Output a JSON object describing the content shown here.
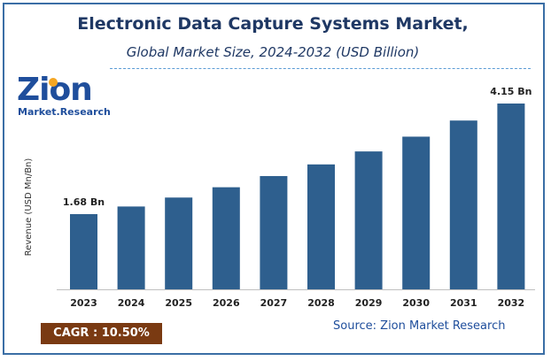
{
  "header": {
    "title": "Electronic Data Capture Systems Market,",
    "subtitle": "Global Market Size, 2024-2032 (USD Billion)"
  },
  "logo": {
    "main": "Zion",
    "sub": "Market.Research"
  },
  "footer": {
    "cagr": "CAGR :  10.50%",
    "source": "Source: Zion Market Research"
  },
  "colors": {
    "bar": "#2e5f8e",
    "title": "#1f3864",
    "cagr_bg": "#7a3a12"
  },
  "chart_data": {
    "type": "bar",
    "title": "Electronic Data Capture Systems Market,",
    "subtitle": "Global Market Size, 2024-2032 (USD Billion)",
    "xlabel": "",
    "ylabel": "Revenue (USD Mn/Bn)",
    "categories": [
      "2023",
      "2024",
      "2025",
      "2026",
      "2027",
      "2028",
      "2029",
      "2030",
      "2031",
      "2032"
    ],
    "values": [
      1.68,
      1.85,
      2.05,
      2.28,
      2.53,
      2.79,
      3.08,
      3.41,
      3.77,
      4.15
    ],
    "data_labels": [
      {
        "index": 0,
        "text": "1.68 Bn"
      },
      {
        "index": 9,
        "text": "4.15 Bn"
      }
    ],
    "ylim": [
      0,
      4.15
    ],
    "grid": false,
    "legend": "none"
  }
}
